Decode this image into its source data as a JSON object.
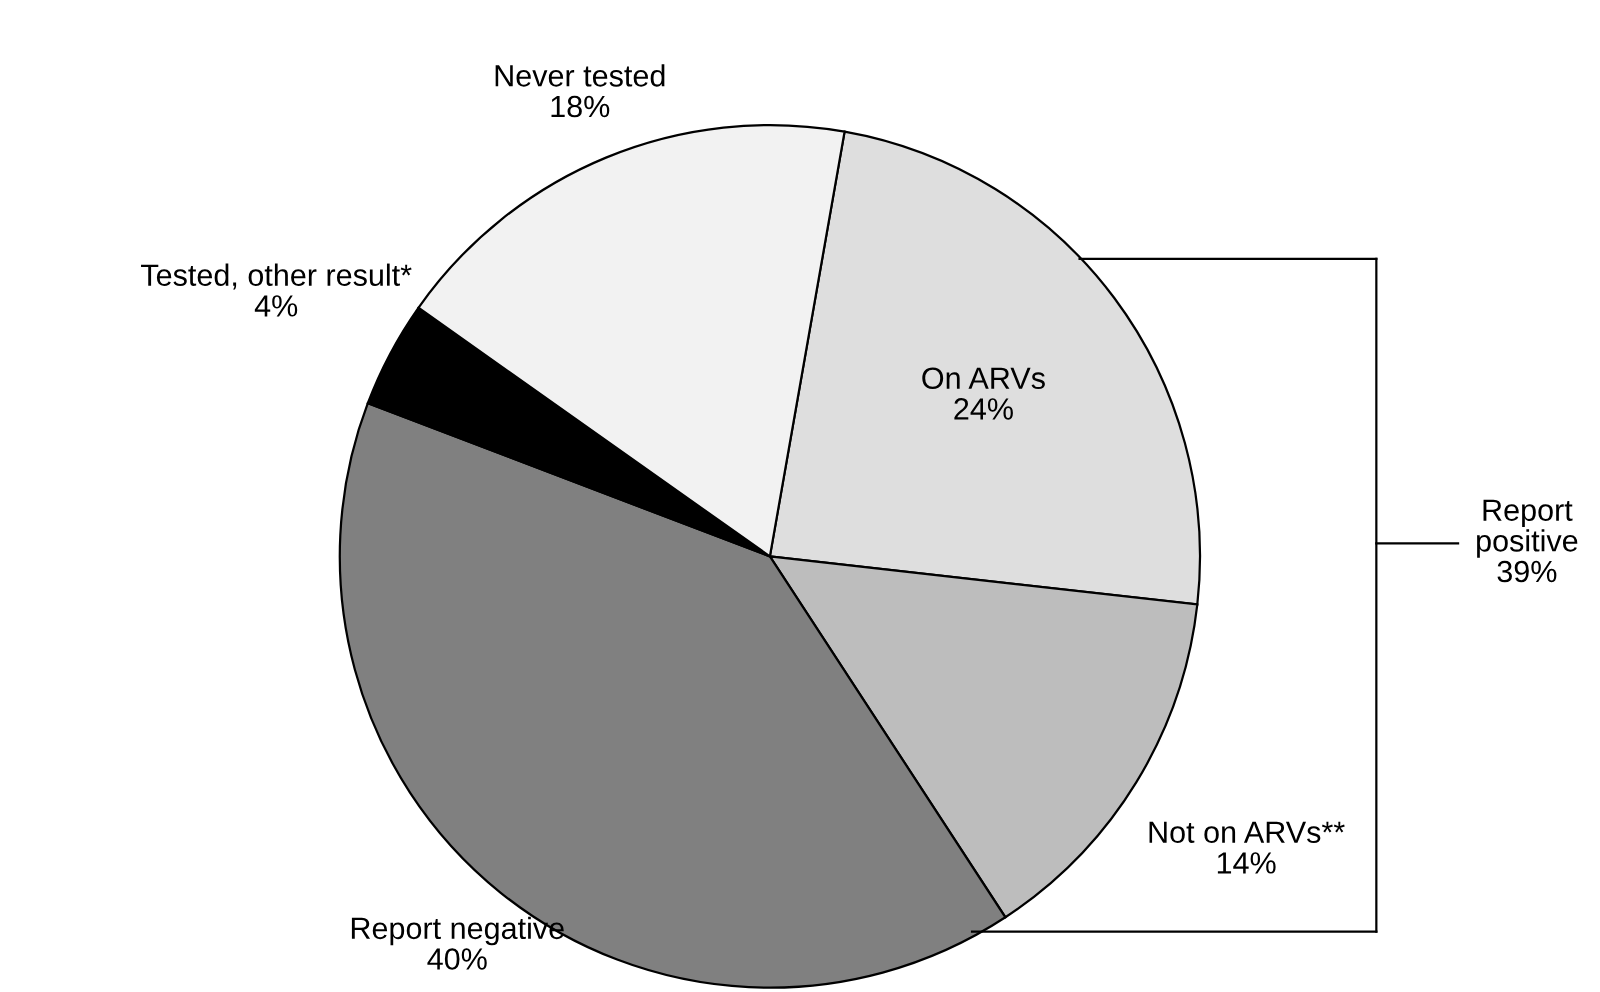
{
  "chart_data": {
    "type": "pie",
    "categories": [
      "On ARVs",
      "Not on ARVs**",
      "Report negative",
      "Tested, other result*",
      "Never tested"
    ],
    "values": [
      24,
      14,
      40,
      4,
      18
    ],
    "value_labels": [
      "24%",
      "14%",
      "40%",
      "4%",
      "18%"
    ],
    "colors": [
      "#dedede",
      "#bdbdbd",
      "#808080",
      "#000000",
      "#f2f2f2"
    ],
    "annotations": [
      "Report\npositive\n39%"
    ],
    "legend": false
  }
}
